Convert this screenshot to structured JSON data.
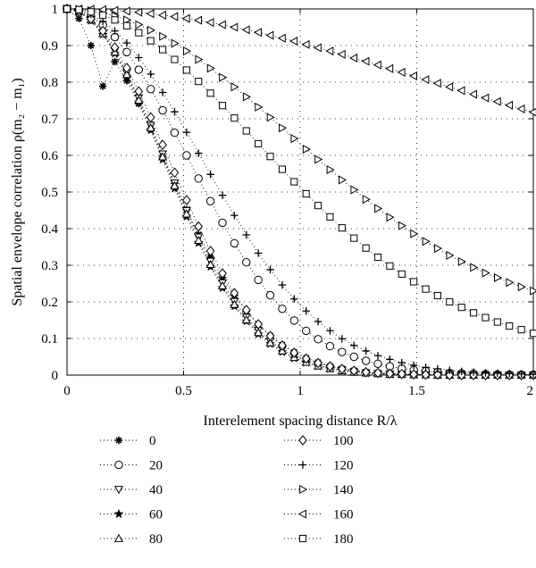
{
  "chart_data": {
    "type": "scatter",
    "xlabel": "Interelement spacing distance R/λ",
    "ylabel": "Spatial envelope correlation ρ(m₂ − m₁)",
    "xlim": [
      0,
      2
    ],
    "ylim": [
      0,
      1
    ],
    "x_ticks": [
      "0",
      "0.5",
      "1",
      "1.5",
      "2"
    ],
    "y_ticks": [
      "0",
      "0.1",
      "0.2",
      "0.3",
      "0.4",
      "0.5",
      "0.6",
      "0.7",
      "0.8",
      "0.9",
      "1"
    ],
    "grid": true,
    "legend_placement": "below plot, two columns",
    "x": [
      0,
      0.0513,
      0.1026,
      0.1538,
      0.2051,
      0.2564,
      0.3077,
      0.359,
      0.4103,
      0.4615,
      0.5128,
      0.5641,
      0.6154,
      0.6667,
      0.7179,
      0.7692,
      0.8205,
      0.8718,
      0.9231,
      0.9744,
      1.0256,
      1.0769,
      1.1282,
      1.1795,
      1.2308,
      1.2821,
      1.3333,
      1.3846,
      1.4359,
      1.4872,
      1.5385,
      1.5897,
      1.641,
      1.6923,
      1.7436,
      1.7949,
      1.8462,
      1.8974,
      1.9487,
      2
    ],
    "series": [
      {
        "name": "0",
        "marker": "asterisk",
        "values": [
          1,
          0.974,
          0.9,
          0.789,
          0.856,
          0.804,
          0.741,
          0.672,
          0.598,
          0.524,
          0.452,
          0.384,
          0.322,
          0.266,
          0.217,
          0.174,
          0.138,
          0.108,
          0.083,
          0.063,
          0.047,
          0.035,
          0.025,
          0.018,
          0.013,
          0.009,
          0.006,
          0.004,
          0.003,
          0.002,
          0.001,
          0.001,
          0.001,
          0.0,
          0.0,
          0.0,
          0.0,
          0.0,
          0.0,
          0.0
        ]
      },
      {
        "name": "20",
        "marker": "circle",
        "values": [
          1,
          0.995,
          0.98,
          0.956,
          0.923,
          0.882,
          0.834,
          0.781,
          0.723,
          0.662,
          0.6,
          0.537,
          0.475,
          0.416,
          0.36,
          0.308,
          0.26,
          0.218,
          0.181,
          0.149,
          0.121,
          0.098,
          0.079,
          0.063,
          0.05,
          0.039,
          0.031,
          0.024,
          0.018,
          0.014,
          0.011,
          0.008,
          0.006,
          0.005,
          0.004,
          0.003,
          0.002,
          0.001,
          0.001,
          0.001
        ]
      },
      {
        "name": "40",
        "marker": "triangle-down",
        "values": [
          1,
          0.993,
          0.971,
          0.935,
          0.886,
          0.826,
          0.757,
          0.682,
          0.604,
          0.525,
          0.449,
          0.377,
          0.311,
          0.252,
          0.201,
          0.158,
          0.122,
          0.093,
          0.07,
          0.052,
          0.038,
          0.027,
          0.019,
          0.014,
          0.009,
          0.006,
          0.004,
          0.003,
          0.002,
          0.001,
          0.001,
          0.001,
          0.0,
          0.0,
          0.0,
          0.0,
          0.0,
          0.0,
          0.0,
          0.0
        ]
      },
      {
        "name": "60",
        "marker": "star",
        "values": [
          1,
          0.992,
          0.968,
          0.93,
          0.878,
          0.816,
          0.745,
          0.669,
          0.589,
          0.51,
          0.433,
          0.361,
          0.296,
          0.238,
          0.188,
          0.147,
          0.112,
          0.085,
          0.063,
          0.046,
          0.034,
          0.024,
          0.017,
          0.012,
          0.008,
          0.005,
          0.004,
          0.002,
          0.002,
          0.001,
          0.001,
          0.0,
          0.0,
          0.0,
          0.0,
          0.0,
          0.0,
          0.0,
          0.0,
          0.0
        ]
      },
      {
        "name": "80",
        "marker": "triangle-up",
        "values": [
          1,
          0.993,
          0.97,
          0.933,
          0.882,
          0.821,
          0.751,
          0.675,
          0.596,
          0.517,
          0.44,
          0.368,
          0.302,
          0.244,
          0.193,
          0.151,
          0.116,
          0.088,
          0.066,
          0.048,
          0.035,
          0.025,
          0.018,
          0.012,
          0.008,
          0.006,
          0.004,
          0.002,
          0.002,
          0.001,
          0.001,
          0.0,
          0.0,
          0.0,
          0.0,
          0.0,
          0.0,
          0.0,
          0.0,
          0.0
        ]
      },
      {
        "name": "100",
        "marker": "diamond",
        "values": [
          1,
          0.993,
          0.973,
          0.94,
          0.895,
          0.839,
          0.775,
          0.704,
          0.629,
          0.553,
          0.478,
          0.406,
          0.339,
          0.278,
          0.224,
          0.178,
          0.139,
          0.107,
          0.081,
          0.061,
          0.045,
          0.033,
          0.024,
          0.017,
          0.012,
          0.008,
          0.006,
          0.004,
          0.003,
          0.002,
          0.001,
          0.001,
          0.0,
          0.0,
          0.0,
          0.0,
          0.0,
          0.0,
          0.0,
          0.0
        ]
      },
      {
        "name": "120",
        "marker": "plus",
        "values": [
          1,
          0.996,
          0.985,
          0.966,
          0.94,
          0.907,
          0.867,
          0.822,
          0.772,
          0.719,
          0.663,
          0.606,
          0.548,
          0.491,
          0.436,
          0.383,
          0.333,
          0.288,
          0.246,
          0.208,
          0.175,
          0.146,
          0.121,
          0.099,
          0.081,
          0.066,
          0.053,
          0.043,
          0.034,
          0.027,
          0.021,
          0.017,
          0.013,
          0.01,
          0.008,
          0.006,
          0.005,
          0.004,
          0.003,
          0.002
        ]
      },
      {
        "name": "140",
        "marker": "triangle-right",
        "values": [
          1,
          0.999,
          0.995,
          0.989,
          0.981,
          0.97,
          0.957,
          0.942,
          0.925,
          0.906,
          0.885,
          0.862,
          0.838,
          0.813,
          0.787,
          0.76,
          0.732,
          0.704,
          0.675,
          0.646,
          0.617,
          0.589,
          0.561,
          0.533,
          0.506,
          0.48,
          0.455,
          0.431,
          0.408,
          0.386,
          0.365,
          0.346,
          0.327,
          0.31,
          0.294,
          0.279,
          0.266,
          0.253,
          0.241,
          0.23
        ]
      },
      {
        "name": "160",
        "marker": "triangle-left",
        "values": [
          1,
          1.0,
          0.999,
          0.998,
          0.996,
          0.994,
          0.991,
          0.987,
          0.983,
          0.979,
          0.974,
          0.969,
          0.963,
          0.957,
          0.95,
          0.943,
          0.936,
          0.928,
          0.92,
          0.912,
          0.903,
          0.894,
          0.885,
          0.876,
          0.866,
          0.857,
          0.847,
          0.837,
          0.827,
          0.817,
          0.807,
          0.797,
          0.787,
          0.777,
          0.767,
          0.757,
          0.747,
          0.737,
          0.727,
          0.718
        ]
      },
      {
        "name": "180",
        "marker": "square",
        "values": [
          1,
          0.998,
          0.992,
          0.983,
          0.97,
          0.954,
          0.935,
          0.913,
          0.889,
          0.862,
          0.833,
          0.802,
          0.77,
          0.736,
          0.702,
          0.667,
          0.632,
          0.597,
          0.562,
          0.528,
          0.495,
          0.463,
          0.432,
          0.402,
          0.374,
          0.347,
          0.322,
          0.298,
          0.276,
          0.255,
          0.235,
          0.217,
          0.2,
          0.185,
          0.17,
          0.157,
          0.145,
          0.134,
          0.124,
          0.114
        ]
      }
    ]
  }
}
